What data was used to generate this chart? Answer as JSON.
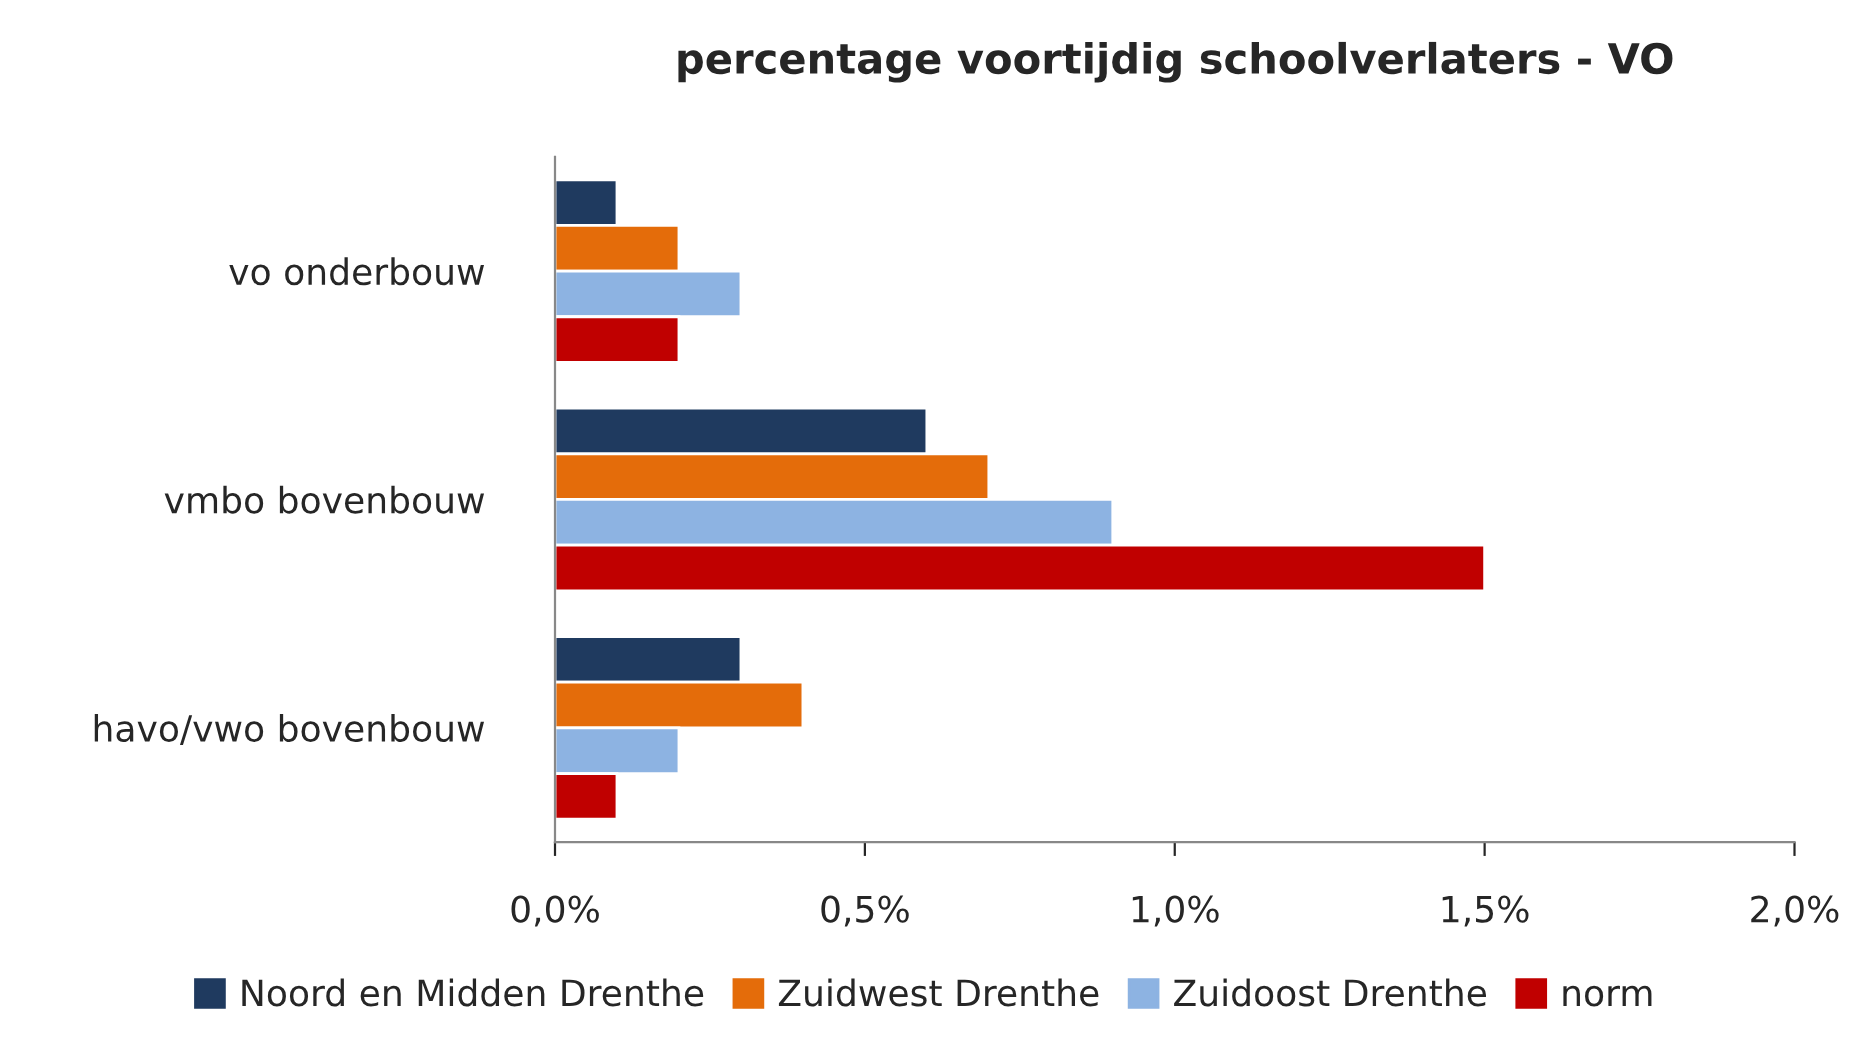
{
  "chart_data": {
    "type": "bar",
    "orientation": "horizontal",
    "title": "percentage voortijdig schoolverlaters - VO",
    "categories": [
      "vo onderbouw",
      "vmbo bovenbouw",
      "havo/vwo bovenbouw"
    ],
    "series": [
      {
        "name": "Noord en Midden Drenthe",
        "color": "#1f3a5f",
        "values": [
          0.1,
          0.6,
          0.3
        ]
      },
      {
        "name": "Zuidwest Drenthe",
        "color": "#e46c0a",
        "values": [
          0.2,
          0.7,
          0.4
        ]
      },
      {
        "name": "Zuidoost Drenthe",
        "color": "#8db3e2",
        "values": [
          0.3,
          0.9,
          0.2
        ]
      },
      {
        "name": "norm",
        "color": "#c00000",
        "values": [
          0.2,
          1.5,
          0.1
        ]
      }
    ],
    "xlim": [
      0,
      2.0
    ],
    "xticks": [
      {
        "value": 0,
        "label": "0,0%"
      },
      {
        "value": 0.5,
        "label": "0,5%"
      },
      {
        "value": 1.0,
        "label": "1,0%"
      },
      {
        "value": 1.5,
        "label": "1,5%"
      },
      {
        "value": 2.0,
        "label": "2,0%"
      }
    ],
    "grid": false,
    "legend": "bottom"
  }
}
